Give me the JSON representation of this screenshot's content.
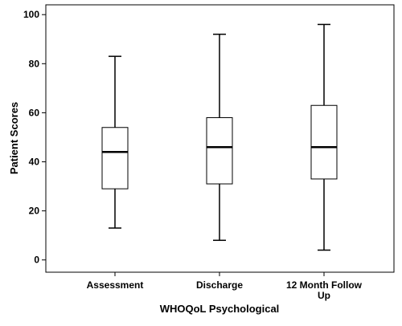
{
  "chart_data": {
    "type": "boxplot",
    "xlabel": "WHOQoL Psychological",
    "ylabel": "Patient Scores",
    "ylim": [
      -5,
      104
    ],
    "yticks": [
      0,
      20,
      40,
      60,
      80,
      100
    ],
    "grid": false,
    "categories": [
      {
        "label_lines": [
          "Assessment"
        ],
        "min": 13,
        "q1": 29,
        "median": 44,
        "q3": 54,
        "max": 83
      },
      {
        "label_lines": [
          "Discharge"
        ],
        "min": 8,
        "q1": 31,
        "median": 46,
        "q3": 58,
        "max": 92
      },
      {
        "label_lines": [
          "12 Month Follow",
          "Up"
        ],
        "min": 4,
        "q1": 33,
        "median": 46,
        "q3": 63,
        "max": 96
      }
    ]
  }
}
